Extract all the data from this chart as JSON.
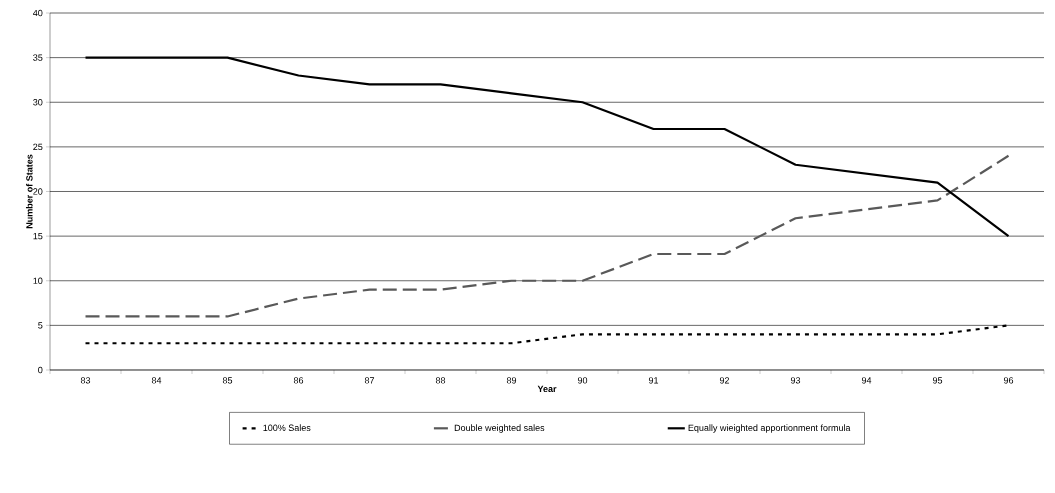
{
  "chart_data": {
    "type": "line",
    "xlabel": "Year",
    "ylabel": "Number of States",
    "categories": [
      "83",
      "84",
      "85",
      "86",
      "87",
      "88",
      "89",
      "90",
      "91",
      "92",
      "93",
      "94",
      "95",
      "96"
    ],
    "series": [
      {
        "name": "100% Sales",
        "color": "#000000",
        "line_style": "dotted",
        "values": [
          3,
          3,
          3,
          3,
          3,
          3,
          3,
          4,
          4,
          4,
          4,
          4,
          4,
          5
        ]
      },
      {
        "name": "Double weighted sales",
        "color": "#595959",
        "line_style": "dashed",
        "values": [
          6,
          6,
          6,
          8,
          9,
          9,
          10,
          10,
          13,
          13,
          17,
          18,
          19,
          24
        ]
      },
      {
        "name": "Equally wieighted apportionment formula",
        "color": "#000000",
        "line_style": "solid",
        "values": [
          35,
          35,
          35,
          33,
          32,
          32,
          31,
          30,
          27,
          27,
          23,
          22,
          21,
          15
        ]
      }
    ],
    "ylim": [
      0,
      40
    ],
    "yticks": [
      0,
      5,
      10,
      15,
      20,
      25,
      30,
      35,
      40
    ],
    "grid": "y",
    "legend": "bottom",
    "marker": "none"
  }
}
